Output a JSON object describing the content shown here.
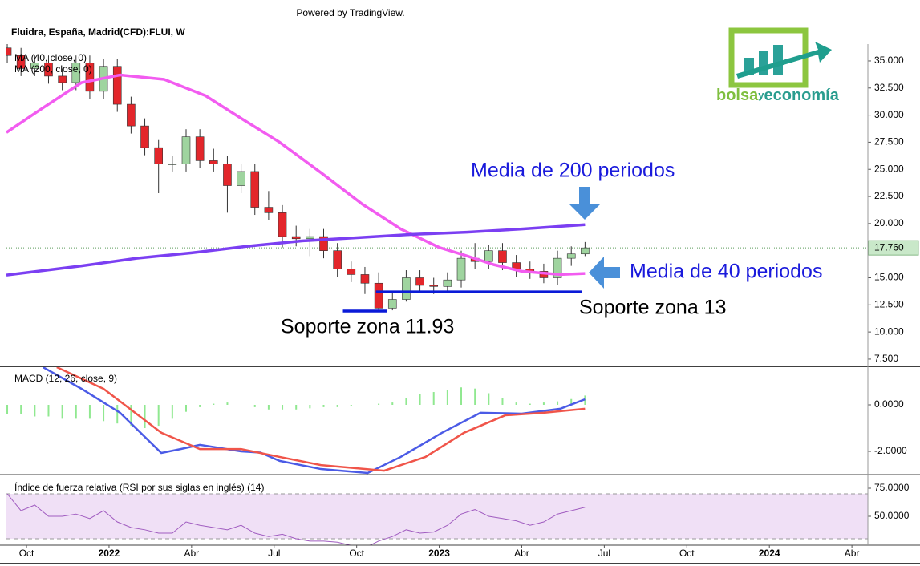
{
  "header": {
    "powered": "Powered by TradingView.",
    "symbol": "Fluidra, España, Madrid(CFD):FLUI, W"
  },
  "logo": {
    "part1": "bolsa",
    "part2": "y",
    "part3": "economía"
  },
  "chart_data": [
    {
      "type": "candlestick",
      "x": [
        -0.7,
        -0.2,
        0.3,
        0.8,
        1.3,
        1.8,
        2.3,
        2.8,
        3.3,
        3.8,
        4.3,
        4.8,
        5.3,
        5.8,
        6.3,
        6.8,
        7.3,
        7.8,
        8.3,
        8.8,
        9.3,
        9.8,
        10.3,
        10.8,
        11.3,
        11.8,
        12.3,
        12.8,
        13.3,
        13.8,
        14.3,
        14.8,
        15.3,
        15.8,
        16.3,
        16.8,
        17.3,
        17.8,
        18.3,
        18.8,
        19.3,
        19.8,
        20.3
      ],
      "open": [
        36.2,
        35.5,
        34.3,
        34.8,
        33.6,
        33.0,
        34.8,
        32.2,
        34.5,
        31.0,
        29.0,
        27.0,
        25.5,
        25.5,
        28.0,
        25.8,
        25.5,
        23.5,
        24.8,
        21.5,
        21.0,
        18.8,
        18.6,
        18.8,
        17.5,
        15.8,
        15.3,
        14.5,
        12.2,
        13.0,
        15.0,
        14.3,
        14.2,
        14.8,
        16.8,
        16.5,
        17.5,
        16.4,
        15.8,
        15.6,
        15.0,
        16.8,
        17.2
      ],
      "high": [
        36.9,
        36.2,
        35.5,
        35.5,
        34.3,
        35.5,
        35.5,
        35.2,
        35.2,
        31.7,
        29.7,
        27.7,
        26.2,
        28.7,
        28.7,
        26.9,
        26.2,
        25.5,
        25.5,
        23.0,
        21.7,
        19.8,
        19.5,
        19.5,
        18.2,
        16.5,
        16.0,
        15.5,
        13.7,
        15.7,
        15.7,
        15.0,
        15.5,
        17.5,
        18.2,
        18.0,
        18.2,
        17.1,
        16.5,
        16.3,
        17.5,
        17.9,
        18.3
      ],
      "low": [
        34.8,
        33.6,
        33.6,
        32.9,
        32.3,
        32.3,
        31.5,
        31.5,
        30.3,
        28.3,
        26.3,
        22.8,
        24.8,
        24.8,
        25.1,
        24.8,
        21.0,
        22.8,
        20.8,
        20.3,
        17.8,
        17.9,
        17.0,
        16.8,
        15.1,
        14.6,
        13.5,
        11.93,
        12.0,
        12.8,
        13.6,
        13.5,
        13.8,
        14.1,
        15.8,
        15.8,
        15.7,
        15.1,
        14.9,
        14.5,
        14.3,
        16.1,
        17.0
      ],
      "close": [
        35.5,
        34.3,
        34.8,
        33.6,
        33.0,
        34.8,
        32.2,
        34.5,
        31.0,
        29.0,
        27.0,
        25.5,
        25.5,
        28.0,
        25.8,
        25.5,
        23.5,
        24.8,
        21.5,
        21.0,
        18.8,
        18.6,
        18.8,
        17.5,
        15.8,
        15.3,
        14.5,
        12.2,
        13.0,
        15.0,
        14.3,
        14.2,
        14.8,
        16.8,
        16.5,
        17.5,
        16.4,
        15.8,
        15.6,
        15.0,
        16.8,
        17.2,
        17.76
      ],
      "up_color": "#9fd49f",
      "down_color": "#e3262b",
      "series": [
        {
          "name": "MA (40, close, 0)",
          "color": "#f25cf0",
          "x": [
            -0.73,
            0.5,
            2,
            3.4,
            5,
            6.5,
            7.8,
            9.2,
            10.7,
            12.2,
            13.6,
            15,
            15.9,
            17,
            18,
            19.4,
            20.3
          ],
          "values": [
            28.4,
            30.5,
            33,
            33.7,
            33.3,
            31.8,
            29.7,
            27.5,
            24.7,
            21.8,
            19.5,
            17.8,
            17.1,
            16.2,
            15.6,
            15.3,
            15.4
          ]
        },
        {
          "name": "MA (200, close, 0)",
          "color": "#7b3ff2",
          "x": [
            -0.73,
            2,
            4,
            6,
            8,
            10,
            12,
            14,
            16,
            18,
            20.3
          ],
          "values": [
            15.25,
            16.1,
            16.8,
            17.3,
            17.9,
            18.4,
            18.7,
            19.0,
            19.2,
            19.5,
            19.9
          ]
        }
      ],
      "last_price": {
        "value": 17.76,
        "label": "17.760"
      },
      "support_lines": [
        {
          "value": 11.93,
          "x": [
            11.5,
            13.1
          ]
        },
        {
          "value": 13.7,
          "x": [
            12.7,
            20.2
          ]
        }
      ],
      "annotations": [
        "Media de 200 periodos",
        "Media de 40 periodos",
        "Soporte zona 13",
        "Soporte zona 11.93"
      ],
      "xlim": [
        -0.73,
        30.58
      ],
      "ylim": [
        6.83,
        36.55
      ],
      "yticks": [
        {
          "value": 35,
          "label": "35.000"
        },
        {
          "value": 32.5,
          "label": "32.500"
        },
        {
          "value": 30,
          "label": "30.000"
        },
        {
          "value": 27.5,
          "label": "27.500"
        },
        {
          "value": 25,
          "label": "25.000"
        },
        {
          "value": 22.5,
          "label": "22.500"
        },
        {
          "value": 20,
          "label": "20.000"
        },
        {
          "value": 17.5,
          "label": "17.500"
        },
        {
          "value": 15,
          "label": "15.000"
        },
        {
          "value": 12.5,
          "label": "12.500"
        },
        {
          "value": 10,
          "label": "10.000"
        },
        {
          "value": 7.5,
          "label": "7.500"
        }
      ]
    },
    {
      "type": "line",
      "title": "MACD (12, 26, close, 9)",
      "series": [
        {
          "color": "#4b5be6",
          "x": [
            0.6,
            2,
            3.4,
            4.9,
            5.6,
            6.3,
            7,
            7.8,
            8.5,
            9.2,
            10.7,
            12.4,
            13.6,
            15.1,
            16.5,
            18,
            19.4,
            20.3
          ],
          "values": [
            1.62,
            0.69,
            -0.34,
            -2.07,
            -1.9,
            -1.72,
            -1.85,
            -2.0,
            -2.05,
            -2.41,
            -2.76,
            -2.93,
            -2.24,
            -1.2,
            -0.34,
            -0.38,
            -0.17,
            0.24
          ]
        },
        {
          "color": "#f0554a",
          "x": [
            1.1,
            2.8,
            4.9,
            6.3,
            7.8,
            9.2,
            10.7,
            13,
            14.5,
            15.9,
            17.4,
            18.8,
            20.3
          ],
          "values": [
            1.62,
            0.69,
            -1.2,
            -1.9,
            -1.9,
            -2.24,
            -2.59,
            -2.83,
            -2.24,
            -1.2,
            -0.45,
            -0.34,
            -0.17
          ]
        }
      ],
      "histogram": {
        "color": "#90e890",
        "x": [
          -0.7,
          -0.2,
          0.3,
          0.8,
          1.3,
          1.8,
          2.3,
          2.8,
          3.3,
          3.8,
          4.3,
          4.8,
          5.3,
          5.8,
          6.3,
          6.8,
          7.3,
          7.8,
          8.3,
          8.8,
          9.3,
          9.8,
          10.3,
          10.8,
          11.3,
          11.8,
          12.3,
          12.8,
          13.3,
          13.8,
          14.3,
          14.8,
          15.3,
          15.8,
          16.3,
          16.8,
          17.3,
          17.8,
          18.3,
          18.8,
          19.3,
          19.8,
          20.3
        ],
        "values": [
          -0.4,
          -0.4,
          -0.5,
          -0.5,
          -0.6,
          -0.6,
          -0.6,
          -0.7,
          -0.8,
          -0.9,
          -1.0,
          -0.9,
          -0.6,
          -0.3,
          -0.1,
          0.05,
          0.1,
          0.0,
          -0.1,
          -0.2,
          -0.2,
          -0.2,
          -0.15,
          -0.1,
          -0.1,
          -0.05,
          0.0,
          0.05,
          0.1,
          0.3,
          0.45,
          0.55,
          0.65,
          0.75,
          0.7,
          0.5,
          0.3,
          0.1,
          0.05,
          0.1,
          0.15,
          0.25,
          0.4
        ]
      },
      "xlim": [
        -0.73,
        30.58
      ],
      "ylim": [
        -3.0,
        1.62
      ],
      "yticks": [
        {
          "value": 0,
          "label": "0.0000"
        },
        {
          "value": -2,
          "label": "-2.0000"
        }
      ]
    },
    {
      "type": "line",
      "title": "Índice de fuerza relativa (RSI por sus siglas en inglés) (14)",
      "series": [
        {
          "color": "#a05cc0",
          "x": [
            -0.7,
            -0.2,
            0.3,
            0.8,
            1.3,
            1.8,
            2.3,
            2.8,
            3.3,
            3.8,
            4.3,
            4.8,
            5.3,
            5.8,
            6.3,
            6.8,
            7.3,
            7.8,
            8.3,
            8.8,
            9.3,
            9.8,
            10.3,
            10.8,
            11.3,
            11.8,
            12.3,
            12.8,
            13.3,
            13.8,
            14.3,
            14.8,
            15.3,
            15.8,
            16.3,
            16.8,
            17.3,
            17.8,
            18.3,
            18.8,
            19.3,
            19.8,
            20.3
          ],
          "values": [
            70,
            55,
            60,
            50,
            50,
            52,
            48,
            55,
            45,
            40,
            38,
            35,
            35,
            45,
            42,
            40,
            38,
            42,
            35,
            32,
            34,
            30,
            28,
            28,
            27,
            24,
            22,
            28,
            32,
            38,
            35,
            36,
            42,
            52,
            56,
            50,
            48,
            46,
            42,
            45,
            52,
            55,
            58
          ]
        }
      ],
      "bands": [
        30,
        70
      ],
      "xlim": [
        -0.73,
        30.58
      ],
      "ylim": [
        24.3,
        85.7
      ],
      "yticks": [
        {
          "value": 75,
          "label": "75.0000"
        },
        {
          "value": 50,
          "label": "50.0000"
        }
      ],
      "xticks": [
        {
          "value": 0,
          "label": "Oct"
        },
        {
          "value": 3,
          "label": "2022"
        },
        {
          "value": 6,
          "label": "Abr"
        },
        {
          "value": 9,
          "label": "Jul"
        },
        {
          "value": 12,
          "label": "Oct"
        },
        {
          "value": 15,
          "label": "2023"
        },
        {
          "value": 18,
          "label": "Abr"
        },
        {
          "value": 21,
          "label": "Jul"
        },
        {
          "value": 24,
          "label": "Oct"
        },
        {
          "value": 27,
          "label": "2024"
        },
        {
          "value": 30,
          "label": "Abr"
        }
      ]
    }
  ]
}
